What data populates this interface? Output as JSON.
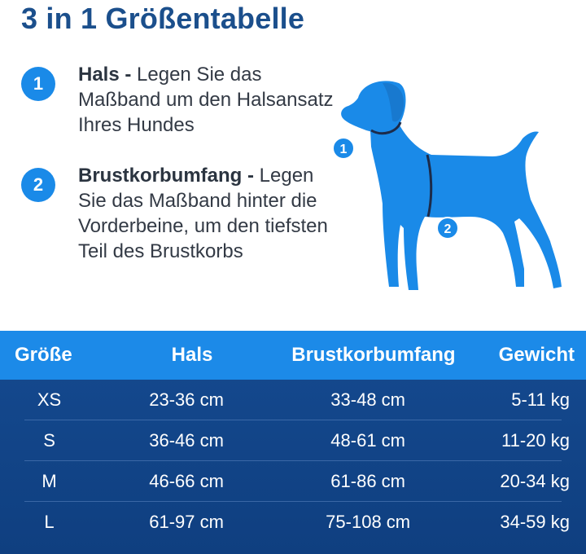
{
  "title": "3 in 1 Größentabelle",
  "steps": [
    {
      "num": "1",
      "bold": "Hals -",
      "text": " Legen Sie das Maßband um den Halsansatz Ihres Hundes"
    },
    {
      "num": "2",
      "bold": "Brustkorbumfang -",
      "text": " Legen Sie das Maßband hinter die Vorderbeine, um den tiefsten Teil des Brustkorbs"
    }
  ],
  "dog": {
    "marker1": "1",
    "marker2": "2",
    "color": "#1a8ae8"
  },
  "table": {
    "headers": [
      "Größe",
      "Hals",
      "Brustkorbumfang",
      "Gewicht"
    ],
    "rows": [
      [
        "XS",
        "23-36 cm",
        "33-48 cm",
        "5-11 kg"
      ],
      [
        "S",
        "36-46 cm",
        "48-61 cm",
        "11-20 kg"
      ],
      [
        "M",
        "46-66 cm",
        "61-86 cm",
        "20-34 kg"
      ],
      [
        "L",
        "61-97 cm",
        "75-108 cm",
        "34-59 kg"
      ]
    ]
  },
  "colors": {
    "accent": "#1a8ae8",
    "title": "#1b4f8c",
    "table_bg": "#154a90"
  }
}
